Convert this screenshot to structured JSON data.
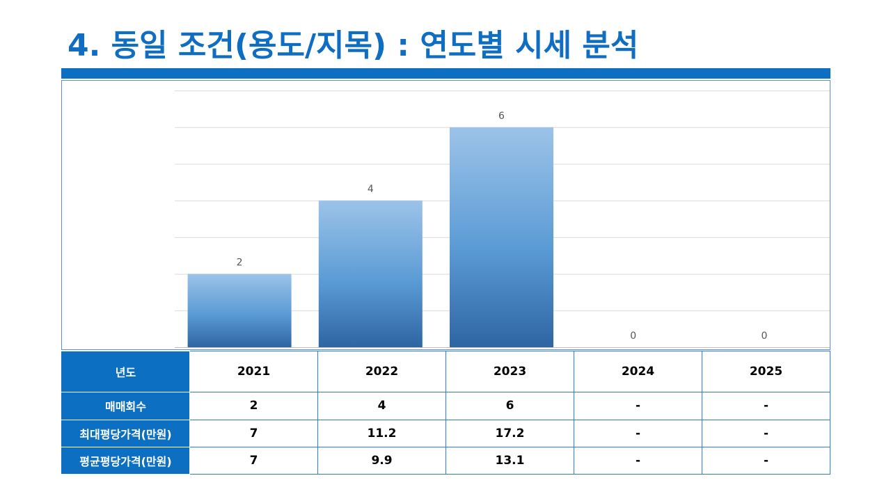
{
  "slide": {
    "title": "4. 동일 조건(용도/지목) : 연도별 시세 분석"
  },
  "colors": {
    "accent": "#0d6fc1",
    "bar_top": "#9cc3e8",
    "bar_mid": "#5b9bd5",
    "bar_bottom": "#2e65a3"
  },
  "chart_data": {
    "type": "bar",
    "categories": [
      "2021",
      "2022",
      "2023",
      "2024",
      "2025"
    ],
    "values": [
      2,
      4,
      6,
      0,
      0
    ],
    "data_labels": [
      "2",
      "4",
      "6",
      "0",
      "0"
    ],
    "ylim": [
      0,
      7
    ],
    "y_axis_visible": false,
    "grid": true,
    "legend": "none"
  },
  "table": {
    "header_label": "년도",
    "years": [
      "2021",
      "2022",
      "2023",
      "2024",
      "2025"
    ],
    "rows": [
      {
        "label": "매매회수",
        "values": [
          "2",
          "4",
          "6",
          "-",
          "-"
        ]
      },
      {
        "label": "최대평당가격(만원)",
        "values": [
          "7",
          "11.2",
          "17.2",
          "-",
          "-"
        ]
      },
      {
        "label": "평균평당가격(만원)",
        "values": [
          "7",
          "9.9",
          "13.1",
          "-",
          "-"
        ]
      }
    ]
  }
}
